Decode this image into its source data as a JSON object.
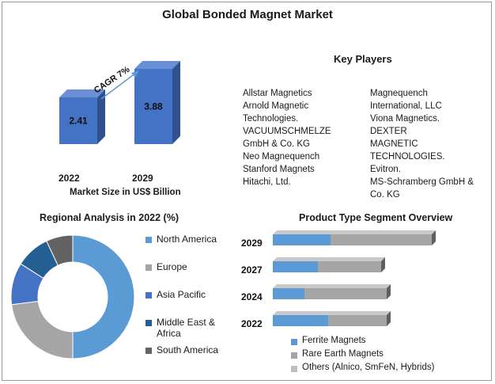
{
  "title": "Global Bonded Magnet Market",
  "market_size": {
    "caption": "Market Size in US$ Billion",
    "cagr_label": "CAGR 7%",
    "bars": [
      {
        "year": "2022",
        "value": "2.41"
      },
      {
        "year": "2029",
        "value": "3.88"
      }
    ]
  },
  "key_players": {
    "heading": "Key Players",
    "left": [
      "Allstar Magnetics",
      "Arnold Magnetic Technologies.",
      "VACUUMSCHMELZE GmbH & Co. KG",
      "Neo Magnequench",
      "Stanford Magnets",
      "Hitachi, Ltd."
    ],
    "right": [
      "Magnequench International, LLC",
      "Viona Magnetics.",
      "DEXTER MAGNETIC TECHNOLOGIES.",
      "Evitron.",
      "MS-Schramberg GmbH & Co. KG"
    ]
  },
  "regional": {
    "heading": "Regional Analysis in 2022 (%)",
    "legend": [
      "North America",
      "Europe",
      "Asia Pacific",
      "Middle East & Africa",
      "South America"
    ]
  },
  "product": {
    "heading": "Product Type Segment Overview",
    "legend": [
      "Ferrite Magnets",
      "Rare Earth Magnets",
      "Others (Alnico, SmFeN, Hybrids)"
    ]
  },
  "colors": {
    "bar_blue": "#4472c4",
    "bar_blue_dark": "#2f528f",
    "north_america": "#5b9bd5",
    "europe": "#a5a5a5",
    "asia_pacific": "#4472c4",
    "middle_east_africa": "#255e91",
    "south_america": "#636363",
    "ferrite": "#5b9bd5",
    "rare_earth": "#a5a5a5",
    "others": "#bfbfbf"
  },
  "chart_data": [
    {
      "type": "bar",
      "title": "",
      "xlabel": "Market Size in US$ Billion",
      "categories": [
        "2022",
        "2029"
      ],
      "values": [
        2.41,
        3.88
      ]
    },
    {
      "type": "pie",
      "title": "Regional Analysis in 2022 (%)",
      "categories": [
        "North America",
        "Europe",
        "Asia Pacific",
        "Middle East & Africa",
        "South America"
      ],
      "values": [
        50,
        23,
        11,
        9,
        7
      ]
    },
    {
      "type": "bar",
      "orientation": "horizontal",
      "stacked": true,
      "title": "Product Type Segment Overview",
      "categories": [
        "2029",
        "2027",
        "2024",
        "2022"
      ],
      "series": [
        {
          "name": "Ferrite Magnets",
          "values": [
            73,
            57,
            40,
            70
          ]
        },
        {
          "name": "Rare Earth Magnets",
          "values": [
            128,
            80,
            104,
            74
          ]
        },
        {
          "name": "Others (Alnico, SmFeN, Hybrids)",
          "values": [
            0,
            0,
            0,
            0
          ]
        }
      ]
    }
  ]
}
